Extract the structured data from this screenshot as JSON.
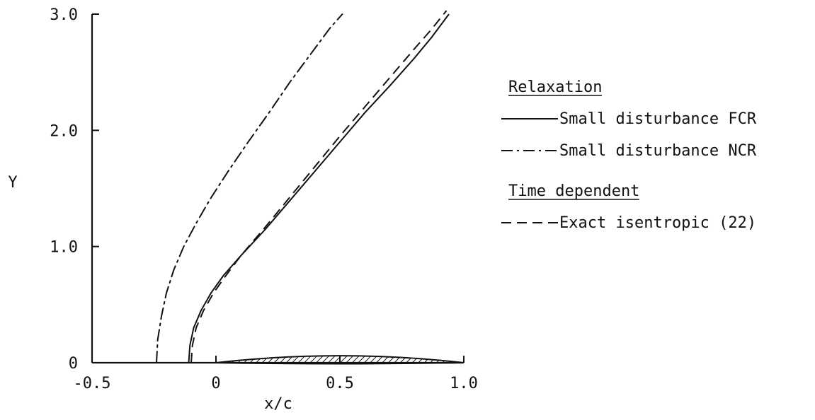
{
  "chart_data": {
    "type": "line",
    "xlabel": "x/c",
    "ylabel": "Y",
    "xlim": [
      -0.5,
      1.0
    ],
    "ylim": [
      0,
      3.0
    ],
    "grid": false,
    "legend_placement": "right",
    "x_ticks": [
      "-0.5",
      "0",
      "0.5",
      "1.0"
    ],
    "y_ticks": [
      "0",
      "1.0",
      "2.0",
      "3.0"
    ],
    "x_tick_values": [
      -0.5,
      0,
      0.5,
      1.0
    ],
    "y_tick_values": [
      0,
      1.0,
      2.0,
      3.0
    ],
    "legend_groups": [
      {
        "heading": "Relaxation",
        "entries": [
          0,
          1
        ]
      },
      {
        "heading": "Time dependent",
        "entries": [
          2
        ]
      }
    ],
    "series": [
      {
        "name": "Small disturbance FCR",
        "style": "solid",
        "color": "#111111",
        "x": [
          -0.11,
          -0.105,
          -0.09,
          -0.06,
          -0.02,
          0.03,
          0.1,
          0.2,
          0.3,
          0.4,
          0.5,
          0.6,
          0.7,
          0.8,
          0.87,
          0.94
        ],
        "y": [
          0,
          0.15,
          0.3,
          0.45,
          0.6,
          0.75,
          0.92,
          1.15,
          1.4,
          1.65,
          1.9,
          2.15,
          2.38,
          2.62,
          2.8,
          3.0
        ]
      },
      {
        "name": "Small disturbance NCR",
        "style": "dash-dot",
        "color": "#111111",
        "x": [
          -0.24,
          -0.235,
          -0.22,
          -0.2,
          -0.17,
          -0.13,
          -0.08,
          -0.02,
          0.05,
          0.13,
          0.22,
          0.3,
          0.38,
          0.46,
          0.51
        ],
        "y": [
          0,
          0.2,
          0.4,
          0.6,
          0.8,
          1.0,
          1.2,
          1.42,
          1.65,
          1.9,
          2.17,
          2.42,
          2.65,
          2.88,
          3.0
        ]
      },
      {
        "name": "Exact isentropic (22)",
        "style": "dashed",
        "color": "#111111",
        "x": [
          -0.1,
          -0.095,
          -0.08,
          -0.05,
          -0.01,
          0.04,
          0.1,
          0.2,
          0.3,
          0.4,
          0.5,
          0.6,
          0.7,
          0.8,
          0.87,
          0.93
        ],
        "y": [
          0,
          0.15,
          0.3,
          0.45,
          0.6,
          0.75,
          0.92,
          1.17,
          1.43,
          1.69,
          1.95,
          2.2,
          2.45,
          2.7,
          2.87,
          3.03
        ]
      }
    ],
    "airfoil": {
      "description_label": "",
      "x_start": 0,
      "x_end": 1.0,
      "max_thickness": 0.06
    }
  }
}
